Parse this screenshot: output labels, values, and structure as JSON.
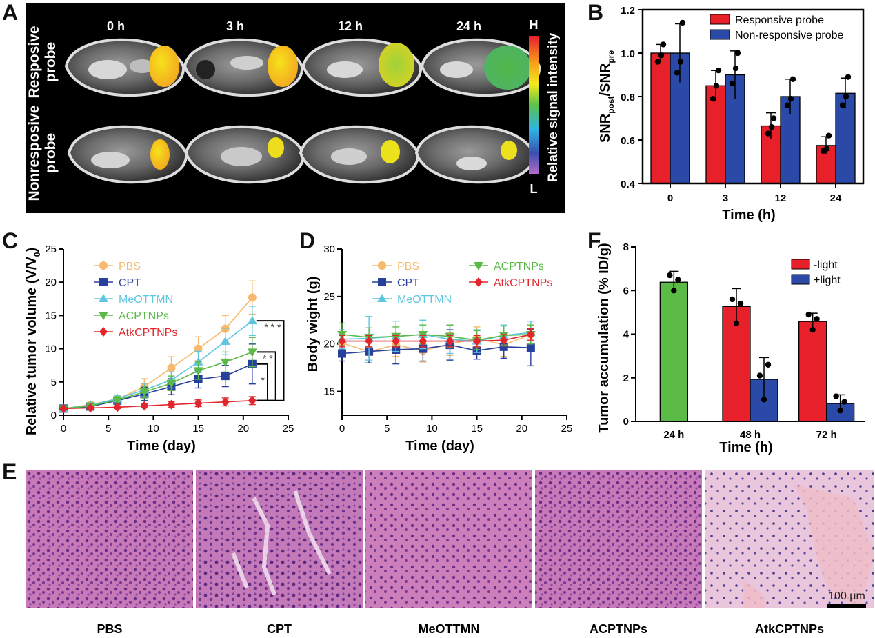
{
  "panel_letters": [
    "A",
    "B",
    "C",
    "D",
    "E",
    "F"
  ],
  "colors": {
    "red": "#e8202a",
    "blue": "#2b4aa8",
    "green": "#5bbb46",
    "orange": "#f6b96d",
    "navy": "#27409b",
    "cyan": "#5fc6e0",
    "lgreen": "#5ab947",
    "lred": "#e3262b"
  },
  "panel_a": {
    "time_labels": [
      "0 h",
      "3 h",
      "12 h",
      "24 h"
    ],
    "row_labels": [
      [
        "Resposive",
        "probe"
      ],
      [
        "Nonresposive",
        "probe"
      ]
    ],
    "colorbar": {
      "high": "H",
      "low": "L",
      "label": "Relative signal intensity"
    }
  },
  "chart_data": [
    {
      "id": "B",
      "type": "bar",
      "categories": [
        "0",
        "3",
        "12",
        "24"
      ],
      "xlabel": "Time (h)",
      "ylabel_main": "SNR",
      "ylabel_sub1": "post",
      "ylabel_mid": "/SNR",
      "ylabel_sub2": "pre",
      "ylim": [
        0.4,
        1.2
      ],
      "yticks": [
        "0.4",
        "0.6",
        "0.8",
        "1.0",
        "1.2"
      ],
      "ytick_values": [
        0.4,
        0.6,
        0.8,
        1.0,
        1.2
      ],
      "legend_position": "top-right",
      "series": [
        {
          "name": "Responsive probe",
          "color": "#e8202a",
          "values": [
            1.0,
            0.85,
            0.665,
            0.575
          ],
          "errors": [
            0.04,
            0.07,
            0.06,
            0.04
          ],
          "points": [
            [
              1.04,
              0.96,
              0.99
            ],
            [
              0.92,
              0.79,
              0.85
            ],
            [
              0.7,
              0.63,
              0.66
            ],
            [
              0.62,
              0.55,
              0.56
            ]
          ]
        },
        {
          "name": "Non-responsive probe",
          "color": "#2b4aa8",
          "values": [
            1.0,
            0.9,
            0.8,
            0.815
          ],
          "errors": [
            0.135,
            0.11,
            0.08,
            0.07
          ],
          "points": [
            [
              1.14,
              0.91,
              0.96
            ],
            [
              1.0,
              0.86,
              0.93
            ],
            [
              0.88,
              0.76,
              0.79
            ],
            [
              0.89,
              0.76,
              0.8
            ]
          ]
        }
      ]
    },
    {
      "id": "C",
      "type": "line",
      "x": [
        0,
        3,
        6,
        9,
        12,
        15,
        18,
        21
      ],
      "xlabel": "Time (day)",
      "ylabel_main": "Relative tumor volume (V/V",
      "ylabel_sub": "0",
      "ylabel_end": ")",
      "xlim": [
        0,
        25
      ],
      "ylim": [
        0,
        25
      ],
      "xticks": [
        "0",
        "5",
        "10",
        "15",
        "20",
        "25"
      ],
      "xtick_values": [
        0,
        5,
        10,
        15,
        20,
        25
      ],
      "yticks": [
        "0",
        "5",
        "10",
        "15",
        "20",
        "25"
      ],
      "ytick_values": [
        0,
        5,
        10,
        15,
        20,
        25
      ],
      "significance": [
        "* * *",
        "* *",
        "*"
      ],
      "series": [
        {
          "name": "PBS",
          "color": "#f6b96d",
          "marker": "circle",
          "values": [
            1,
            1.6,
            2.4,
            4.3,
            7.1,
            10,
            13,
            17.7
          ],
          "errors": [
            0.2,
            0.3,
            0.6,
            1.2,
            1.7,
            1.8,
            2.0,
            2.5
          ]
        },
        {
          "name": "CPT",
          "color": "#27409b",
          "marker": "square",
          "values": [
            1,
            1.3,
            2.2,
            3.2,
            4.3,
            5.4,
            5.9,
            7.7
          ],
          "errors": [
            0.2,
            0.3,
            0.5,
            1.0,
            1.2,
            1.3,
            1.6,
            3.0
          ]
        },
        {
          "name": "MeOTTMN",
          "color": "#5fc6e0",
          "marker": "triangle",
          "values": [
            1,
            1.5,
            2.5,
            3.8,
            5.3,
            8,
            11.1,
            14.2
          ],
          "errors": [
            0.2,
            0.3,
            0.5,
            1.0,
            1.2,
            1.6,
            2.0,
            2.2
          ]
        },
        {
          "name": "ACPTNPs",
          "color": "#5ab947",
          "marker": "triangle-down",
          "values": [
            1,
            1.4,
            2.3,
            3.5,
            4.8,
            6.7,
            8,
            9.5
          ],
          "errors": [
            0.2,
            0.3,
            0.5,
            0.9,
            1.1,
            1.3,
            1.5,
            2.2
          ]
        },
        {
          "name": "AtkCPTNPs",
          "color": "#e3262b",
          "marker": "diamond",
          "values": [
            1,
            1.1,
            1.2,
            1.4,
            1.6,
            1.8,
            2.0,
            2.2
          ],
          "errors": [
            0.1,
            0.15,
            0.2,
            0.3,
            0.4,
            0.5,
            0.6,
            0.6
          ]
        }
      ]
    },
    {
      "id": "D",
      "type": "line",
      "x": [
        0,
        3,
        6,
        9,
        12,
        15,
        18,
        21
      ],
      "xlabel": "Time (day)",
      "ylabel": "Body wight (g)",
      "xlim": [
        0,
        25
      ],
      "ylim": [
        12.5,
        30
      ],
      "xticks": [
        "0",
        "5",
        "10",
        "15",
        "20",
        "25"
      ],
      "xtick_values": [
        0,
        5,
        10,
        15,
        20,
        25
      ],
      "yticks": [
        "15",
        "20",
        "25",
        "30"
      ],
      "ytick_values": [
        15,
        20,
        25,
        30
      ],
      "series": [
        {
          "name": "PBS",
          "color": "#f6b96d",
          "marker": "circle",
          "values": [
            20.1,
            19.2,
            19.9,
            19.3,
            20,
            20.6,
            19.9,
            21
          ],
          "errors": [
            1.2,
            1.2,
            1.2,
            1.2,
            1.2,
            1.2,
            1.2,
            1.2
          ]
        },
        {
          "name": "CPT",
          "color": "#27409b",
          "marker": "square",
          "values": [
            19,
            19.2,
            19.4,
            19.5,
            19.9,
            19.3,
            19.7,
            19.6
          ],
          "errors": [
            0.8,
            1.2,
            1.5,
            1.3,
            1.6,
            0.9,
            1.2,
            1.9
          ]
        },
        {
          "name": "MeOTTMN",
          "color": "#5fc6e0",
          "marker": "triangle",
          "values": [
            20.5,
            20.6,
            20.8,
            21,
            20.5,
            20.3,
            20.9,
            21.2
          ],
          "errors": [
            1.0,
            2.3,
            1.6,
            1.5,
            1.5,
            1.2,
            1.1,
            1.2
          ]
        },
        {
          "name": "ACPTNPs",
          "color": "#5ab947",
          "marker": "triangle-down",
          "values": [
            21,
            20.7,
            20.8,
            21,
            20.8,
            20.4,
            20.9,
            21
          ],
          "errors": [
            1.2,
            1.0,
            1.0,
            1.0,
            1.2,
            1.0,
            1.0,
            1.0
          ]
        },
        {
          "name": "AtkCPTNPs",
          "color": "#e3262b",
          "marker": "diamond",
          "values": [
            20.3,
            20.3,
            20.3,
            20.3,
            20.3,
            20.3,
            20.4,
            21
          ],
          "errors": [
            0.6,
            0.6,
            0.6,
            0.6,
            0.6,
            0.6,
            0.6,
            0.6
          ]
        }
      ]
    },
    {
      "id": "F",
      "type": "bar",
      "categories": [
        "24 h",
        "48 h",
        "72 h"
      ],
      "xlabel": "Time (h)",
      "ylabel": "Tumor accumulation (% ID/g)",
      "ylim": [
        0,
        8
      ],
      "yticks": [
        "0",
        "2",
        "4",
        "6",
        "8"
      ],
      "ytick_values": [
        0,
        2,
        4,
        6,
        8
      ],
      "legend_position": "top-right",
      "legend": [
        {
          "name": "-light",
          "color": "#e8202a"
        },
        {
          "name": "+light",
          "color": "#2b4aa8"
        }
      ],
      "bars": [
        {
          "category": 0,
          "offset": 0,
          "color": "#5bbb46",
          "value": 6.38,
          "error": 0.5,
          "points": [
            6.7,
            6.0,
            6.5
          ]
        },
        {
          "category": 1,
          "offset": -1,
          "color": "#e8202a",
          "value": 5.27,
          "error": 0.82,
          "points": [
            5.6,
            4.5,
            5.4
          ]
        },
        {
          "category": 1,
          "offset": 1,
          "color": "#2b4aa8",
          "value": 1.93,
          "error": 1.0,
          "points": [
            2.1,
            1.0,
            2.6
          ]
        },
        {
          "category": 2,
          "offset": -1,
          "color": "#e8202a",
          "value": 4.58,
          "error": 0.38,
          "points": [
            4.9,
            4.2,
            4.7
          ]
        },
        {
          "category": 2,
          "offset": 1,
          "color": "#2b4aa8",
          "value": 0.82,
          "error": 0.4,
          "points": [
            1.15,
            0.5,
            0.9
          ]
        }
      ]
    }
  ],
  "panel_e": {
    "labels": [
      "PBS",
      "CPT",
      "MeOTTMN",
      "ACPTNPs",
      "AtkCPTNPs"
    ],
    "scale_bar": "100 μm"
  }
}
